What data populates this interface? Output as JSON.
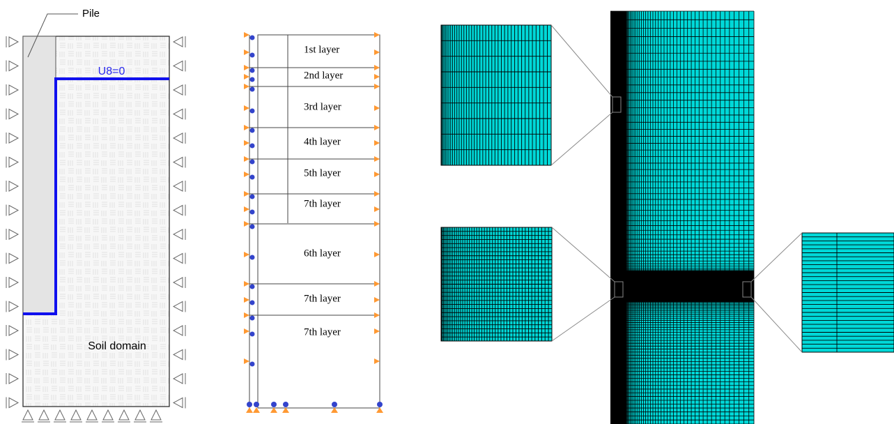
{
  "annotations": {
    "pile": "Pile",
    "boundary": "U8=0",
    "soil": "Soil domain"
  },
  "layers": [
    "1st layer",
    "2nd layer",
    "3rd layer",
    "4th layer",
    "5th layer",
    "7th layer",
    "6th layer",
    "7th layer",
    "7th layer"
  ]
}
